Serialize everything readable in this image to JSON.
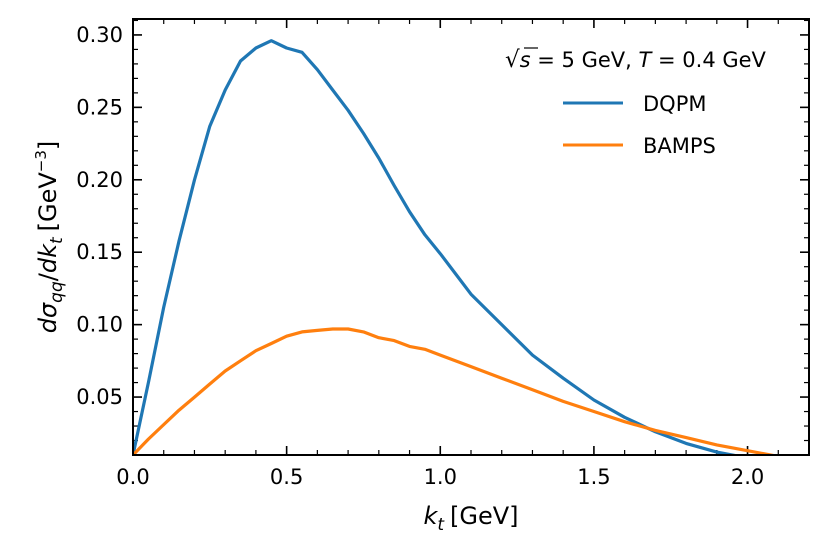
{
  "chart_data": {
    "type": "line",
    "xlabel": "k",
    "xlabel_sub": "t",
    "xlabel_unit": "[GeV]",
    "ylabel_d1": "d",
    "ylabel_sigma": "σ",
    "ylabel_sub1": "qq",
    "ylabel_slash": "/",
    "ylabel_d2": "dk",
    "ylabel_sub2": "t",
    "ylabel_unit": "[GeV",
    "ylabel_exp": "−3",
    "ylabel_close": "]",
    "xlim": [
      0.0,
      2.2
    ],
    "ylim": [
      0.01,
      0.311
    ],
    "xticks": [
      0.0,
      0.5,
      1.0,
      1.5,
      2.0
    ],
    "xtick_labels": [
      "0.0",
      "0.5",
      "1.0",
      "1.5",
      "2.0"
    ],
    "yticks": [
      0.05,
      0.1,
      0.15,
      0.2,
      0.25,
      0.3
    ],
    "ytick_labels": [
      "0.05",
      "0.10",
      "0.15",
      "0.20",
      "0.25",
      "0.30"
    ],
    "annotation": {
      "sqrt": "√",
      "s": "s",
      "energy": " = 5 GeV, ",
      "T": "T",
      "temp": " = 0.4 GeV"
    },
    "legend_position": "top-right",
    "series": [
      {
        "name": "DQPM",
        "color": "#1f77b4",
        "x": [
          0.0,
          0.05,
          0.1,
          0.15,
          0.2,
          0.25,
          0.3,
          0.35,
          0.4,
          0.45,
          0.5,
          0.55,
          0.6,
          0.65,
          0.7,
          0.75,
          0.8,
          0.85,
          0.9,
          0.95,
          1.0,
          1.05,
          1.1,
          1.2,
          1.3,
          1.4,
          1.5,
          1.6,
          1.7,
          1.8,
          1.9,
          2.0
        ],
        "y": [
          0.01,
          0.06,
          0.112,
          0.158,
          0.2,
          0.237,
          0.262,
          0.282,
          0.291,
          0.296,
          0.291,
          0.288,
          0.276,
          0.262,
          0.248,
          0.232,
          0.215,
          0.196,
          0.178,
          0.162,
          0.149,
          0.135,
          0.121,
          0.1,
          0.079,
          0.063,
          0.048,
          0.036,
          0.026,
          0.018,
          0.012,
          0.008
        ]
      },
      {
        "name": "BAMPS",
        "color": "#ff7f0e",
        "x": [
          0.0,
          0.05,
          0.1,
          0.15,
          0.2,
          0.25,
          0.3,
          0.35,
          0.4,
          0.45,
          0.5,
          0.55,
          0.6,
          0.65,
          0.7,
          0.75,
          0.8,
          0.85,
          0.9,
          0.95,
          1.0,
          1.1,
          1.2,
          1.3,
          1.4,
          1.5,
          1.6,
          1.7,
          1.8,
          1.9,
          2.0,
          2.1
        ],
        "y": [
          0.01,
          0.021,
          0.031,
          0.041,
          0.05,
          0.059,
          0.068,
          0.075,
          0.082,
          0.087,
          0.092,
          0.095,
          0.096,
          0.097,
          0.097,
          0.095,
          0.091,
          0.089,
          0.085,
          0.083,
          0.079,
          0.071,
          0.063,
          0.055,
          0.047,
          0.04,
          0.033,
          0.027,
          0.022,
          0.017,
          0.013,
          0.009
        ]
      }
    ]
  }
}
